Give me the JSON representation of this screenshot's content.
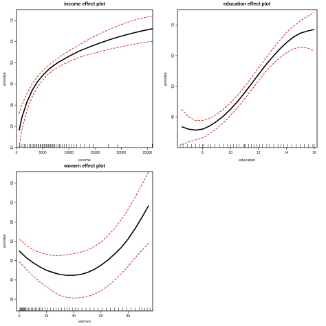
{
  "chart_data": [
    {
      "type": "line",
      "title": "income effect plot",
      "xlabel": "income",
      "ylabel": "prestige",
      "xlim": [
        0,
        26000
      ],
      "ylim": [
        10,
        75
      ],
      "xticks": [
        0,
        5000,
        10000,
        15000,
        20000,
        25000
      ],
      "yticks": [
        10,
        20,
        30,
        40,
        50,
        60,
        70
      ],
      "series": [
        {
          "role": "fit",
          "color": "#000000",
          "x": [
            500,
            1000,
            2000,
            3000,
            4000,
            5000,
            6000,
            7000,
            8000,
            10000,
            12000,
            14000,
            16000,
            18000,
            20000,
            22000,
            24000,
            26000
          ],
          "y": [
            18,
            24,
            31.5,
            37,
            41,
            44,
            46.5,
            48.5,
            50.2,
            53,
            55.5,
            57.5,
            59.3,
            61,
            62.5,
            63.8,
            65,
            66
          ]
        },
        {
          "role": "upper",
          "color": "#ff0000",
          "x": [
            500,
            1000,
            2000,
            3000,
            4000,
            5000,
            6000,
            7000,
            8000,
            10000,
            12000,
            14000,
            16000,
            18000,
            20000,
            22000,
            24000,
            26000
          ],
          "y": [
            26,
            30,
            35.5,
            40,
            43.5,
            46.2,
            48.5,
            50.5,
            52.3,
            55.5,
            58.5,
            61.3,
            63.8,
            66,
            68,
            69.7,
            71,
            72
          ]
        },
        {
          "role": "lower",
          "color": "#ff0000",
          "x": [
            500,
            1000,
            2000,
            3000,
            4000,
            5000,
            6000,
            7000,
            8000,
            10000,
            12000,
            14000,
            16000,
            18000,
            20000,
            22000,
            24000,
            26000
          ],
          "y": [
            10,
            18,
            27.5,
            34,
            38.5,
            41.8,
            44.5,
            46.5,
            48,
            50.5,
            52.5,
            54,
            55.2,
            56.5,
            57.5,
            58.5,
            59.5,
            60
          ]
        }
      ],
      "rug": [
        600,
        900,
        1200,
        1500,
        1800,
        2100,
        2400,
        2700,
        3000,
        3200,
        3500,
        3700,
        3900,
        4100,
        4300,
        4500,
        4700,
        4900,
        5100,
        5300,
        5500,
        5700,
        5900,
        6100,
        6300,
        6500,
        6700,
        6900,
        7100,
        7300,
        7600,
        7900,
        8200,
        8500,
        8800,
        9100,
        9500,
        10000,
        10500,
        11000,
        11500,
        12300,
        13000,
        14000,
        14600,
        17500,
        19300,
        25900
      ]
    },
    {
      "type": "line",
      "title": "education effect plot",
      "xlabel": "education",
      "ylabel": "prestige",
      "xlim": [
        6.2,
        16.2
      ],
      "ylim": [
        30,
        75
      ],
      "xticks": [
        8,
        10,
        12,
        14,
        16
      ],
      "yticks": [
        40,
        50,
        60,
        70
      ],
      "series": [
        {
          "role": "fit",
          "color": "#000000",
          "x": [
            6.5,
            7,
            7.5,
            8,
            8.5,
            9,
            9.5,
            10,
            10.5,
            11,
            11.5,
            12,
            12.5,
            13,
            13.5,
            14,
            14.5,
            15,
            15.5,
            16
          ],
          "y": [
            36.8,
            36,
            35.7,
            36,
            37,
            38.5,
            40.3,
            42.5,
            45,
            47.8,
            50.8,
            53.8,
            56.8,
            59.5,
            62,
            64.2,
            66,
            67.3,
            68,
            68.5
          ]
        },
        {
          "role": "upper",
          "color": "#ff0000",
          "x": [
            6.5,
            7,
            7.5,
            8,
            8.5,
            9,
            9.5,
            10,
            10.5,
            11,
            11.5,
            12,
            12.5,
            13,
            13.5,
            14,
            14.5,
            15,
            15.5,
            16
          ],
          "y": [
            42.5,
            40,
            38.8,
            38.8,
            39.5,
            40.8,
            42.5,
            44.5,
            47,
            49.8,
            52.8,
            56,
            59,
            62,
            64.8,
            67.5,
            69.5,
            71.3,
            72.8,
            74
          ]
        },
        {
          "role": "lower",
          "color": "#ff0000",
          "x": [
            6.5,
            7,
            7.5,
            8,
            8.5,
            9,
            9.5,
            10,
            10.5,
            11,
            11.5,
            12,
            12.5,
            13,
            13.5,
            14,
            14.5,
            15,
            15.5,
            16
          ],
          "y": [
            31,
            31.8,
            32.5,
            33.2,
            34.5,
            36.2,
            38.1,
            40.5,
            43,
            45.8,
            48.8,
            51.7,
            54.6,
            57.1,
            59.2,
            60.9,
            62.2,
            62.8,
            62.5,
            61.5
          ]
        }
      ],
      "rug": [
        6.4,
        6.6,
        6.9,
        7.2,
        7.5,
        7.8,
        8.0,
        8.1,
        8.4,
        8.6,
        8.9,
        9.2,
        9.5,
        9.8,
        10.0,
        10.2,
        10.4,
        10.6,
        10.9,
        11.0,
        11.1,
        11.3,
        11.5,
        11.7,
        11.9,
        12.1,
        12.3,
        12.6,
        12.8,
        13.1,
        13.4,
        13.6,
        13.8,
        14.1,
        14.4,
        14.7,
        15.0,
        15.3,
        15.6,
        15.9,
        16.0
      ]
    },
    {
      "type": "line",
      "title": "women effect plot",
      "xlabel": "women",
      "ylabel": "prestige",
      "xlim": [
        -2,
        98
      ],
      "ylim": [
        32,
        68
      ],
      "xticks": [
        0,
        20,
        40,
        60,
        80
      ],
      "yticks": [
        35,
        40,
        45,
        50,
        55,
        60,
        65
      ],
      "series": [
        {
          "role": "fit",
          "color": "#000000",
          "x": [
            0,
            5,
            10,
            15,
            20,
            25,
            30,
            35,
            40,
            45,
            50,
            55,
            60,
            65,
            70,
            75,
            80,
            85,
            90,
            95
          ],
          "y": [
            47.5,
            45.8,
            44.5,
            43.4,
            42.5,
            41.9,
            41.4,
            41.2,
            41.2,
            41.4,
            41.9,
            42.7,
            43.8,
            45.1,
            46.7,
            48.4,
            50.6,
            53.2,
            56.1,
            59.2
          ]
        },
        {
          "role": "upper",
          "color": "#ff0000",
          "x": [
            0,
            5,
            10,
            15,
            20,
            25,
            30,
            35,
            40,
            45,
            50,
            55,
            60,
            65,
            70,
            75,
            80,
            85,
            90,
            95
          ],
          "y": [
            50.5,
            49,
            47.8,
            47.1,
            46.6,
            46.3,
            46.3,
            46.5,
            46.8,
            47.2,
            47.7,
            48.6,
            49.8,
            51.4,
            53.3,
            55.6,
            58.3,
            61.3,
            64.6,
            68
          ]
        },
        {
          "role": "lower",
          "color": "#ff0000",
          "x": [
            0,
            5,
            10,
            15,
            20,
            25,
            30,
            35,
            40,
            45,
            50,
            55,
            60,
            65,
            70,
            75,
            80,
            85,
            90,
            95
          ],
          "y": [
            44.7,
            42.8,
            41.1,
            39.5,
            38.2,
            37,
            36,
            35.5,
            35.3,
            35.4,
            35.7,
            36.3,
            37.2,
            38.4,
            39.9,
            41.7,
            43.5,
            45.7,
            47.6,
            49.5
          ]
        }
      ],
      "rug": [
        0.5,
        1,
        1.5,
        2,
        2.5,
        3,
        3.5,
        4,
        4.5,
        5,
        6,
        7,
        8,
        9,
        10,
        11,
        12,
        13,
        14,
        15,
        16,
        17,
        19,
        21,
        23,
        25,
        27,
        29,
        31,
        33,
        35,
        37,
        39,
        41,
        43,
        46,
        49,
        52,
        55,
        58,
        61,
        64,
        67,
        70,
        73,
        76,
        79,
        82,
        85,
        88,
        90,
        92,
        94,
        96
      ]
    }
  ]
}
